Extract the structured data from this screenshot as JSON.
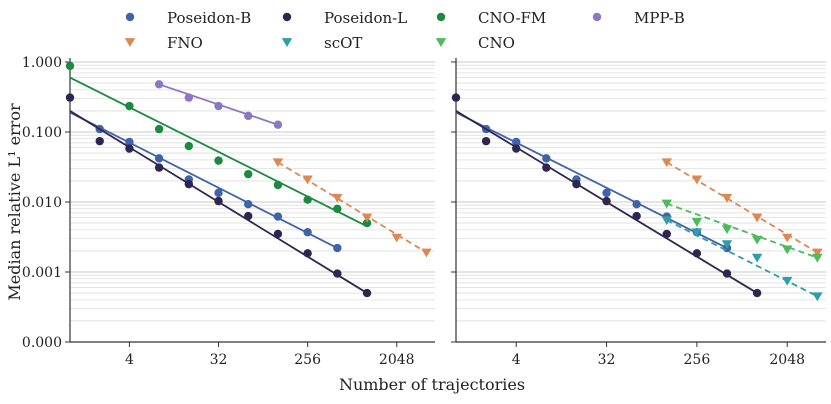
{
  "chart_data": {
    "type": "scatter",
    "xlabel": "Number of trajectories",
    "ylabel": "Median relative L¹ error",
    "xscale": "log2",
    "yscale": "log10",
    "xlim": [
      1,
      5000
    ],
    "ylim": [
      0.0001,
      1.0
    ],
    "xticks": [
      4,
      32,
      256,
      2048
    ],
    "xtick_labels": [
      "4",
      "32",
      "256",
      "2048"
    ],
    "yticks": [
      1.0,
      0.1,
      0.01,
      0.001,
      0.0001
    ],
    "ytick_labels": [
      "1.000",
      "0.100",
      "0.010",
      "0.001",
      "0.000"
    ],
    "grid": "horizontal",
    "legend": {
      "placement": "top",
      "entries": [
        {
          "label": "Poseidon-B",
          "marker": "circle",
          "color": "#4062a8"
        },
        {
          "label": "Poseidon-L",
          "marker": "circle",
          "color": "#2e2650"
        },
        {
          "label": "CNO-FM",
          "marker": "circle",
          "color": "#1b8a3e"
        },
        {
          "label": "MPP-B",
          "marker": "circle",
          "color": "#8a79c0"
        },
        {
          "label": "FNO",
          "marker": "triangle",
          "color": "#dd8852"
        },
        {
          "label": "scOT",
          "marker": "triangle",
          "color": "#2e9eaa"
        },
        {
          "label": "CNO",
          "marker": "triangle",
          "color": "#4cbb5c"
        }
      ]
    },
    "panels": [
      {
        "series": [
          {
            "name": "Poseidon-B",
            "x": [
              2,
              4,
              8,
              16,
              32,
              64,
              128,
              256,
              512
            ],
            "y": [
              0.11,
              0.072,
              0.042,
              0.021,
              0.0135,
              0.0093,
              0.0062,
              0.0037,
              0.0022
            ],
            "fit": [
              [
                1,
                0.19
              ],
              [
                512,
                0.0022
              ]
            ],
            "style": "solid"
          },
          {
            "name": "Poseidon-L",
            "x": [
              1,
              2,
              4,
              8,
              16,
              32,
              64,
              128,
              256,
              512,
              1024
            ],
            "y": [
              0.31,
              0.074,
              0.058,
              0.031,
              0.018,
              0.0103,
              0.0063,
              0.0035,
              0.00185,
              0.00095,
              0.0005
            ],
            "fit": [
              [
                1,
                0.2
              ],
              [
                1024,
                0.0005
              ]
            ],
            "style": "solid"
          },
          {
            "name": "CNO-FM",
            "x": [
              1,
              4,
              8,
              16,
              32,
              64,
              128,
              256,
              512,
              1024
            ],
            "y": [
              0.88,
              0.235,
              0.11,
              0.063,
              0.039,
              0.025,
              0.0175,
              0.0108,
              0.008,
              0.005
            ],
            "fit": [
              [
                1,
                0.6
              ],
              [
                1024,
                0.0045
              ]
            ],
            "style": "solid"
          },
          {
            "name": "MPP-B",
            "x": [
              8,
              16,
              32,
              64,
              128
            ],
            "y": [
              0.48,
              0.31,
              0.235,
              0.17,
              0.127
            ],
            "fit": [
              [
                8,
                0.48
              ],
              [
                128,
                0.127
              ]
            ],
            "style": "solid"
          },
          {
            "name": "FNO",
            "x": [
              128,
              256,
              512,
              1024,
              2048,
              4096
            ],
            "y": [
              0.037,
              0.021,
              0.0115,
              0.006,
              0.0031,
              0.0019
            ],
            "fit": [
              [
                128,
                0.037
              ],
              [
                4096,
                0.0019
              ]
            ],
            "style": "dashed"
          }
        ]
      },
      {
        "series": [
          {
            "name": "Poseidon-B",
            "x": [
              2,
              4,
              8,
              16,
              32,
              64,
              128,
              256,
              512
            ],
            "y": [
              0.11,
              0.072,
              0.042,
              0.021,
              0.0135,
              0.0093,
              0.0062,
              0.0037,
              0.0022
            ],
            "fit": [
              [
                1,
                0.19
              ],
              [
                512,
                0.0022
              ]
            ],
            "style": "solid"
          },
          {
            "name": "Poseidon-L",
            "x": [
              1,
              2,
              4,
              8,
              16,
              32,
              64,
              128,
              256,
              512,
              1024
            ],
            "y": [
              0.31,
              0.074,
              0.058,
              0.031,
              0.018,
              0.0103,
              0.0063,
              0.0035,
              0.00185,
              0.00095,
              0.0005
            ],
            "fit": [
              [
                1,
                0.2
              ],
              [
                1024,
                0.0005
              ]
            ],
            "style": "solid"
          },
          {
            "name": "FNO",
            "x": [
              128,
              256,
              512,
              1024,
              2048,
              4096
            ],
            "y": [
              0.037,
              0.021,
              0.0115,
              0.006,
              0.0031,
              0.0019
            ],
            "fit": [
              [
                128,
                0.037
              ],
              [
                4096,
                0.0019
              ]
            ],
            "style": "dashed"
          },
          {
            "name": "scOT",
            "x": [
              128,
              256,
              512,
              1024,
              2048,
              4096
            ],
            "y": [
              0.0055,
              0.0037,
              0.0025,
              0.0016,
              0.00075,
              0.00045
            ],
            "fit": [
              [
                128,
                0.0055
              ],
              [
                4096,
                0.00045
              ]
            ],
            "style": "dashed"
          },
          {
            "name": "CNO",
            "x": [
              128,
              256,
              512,
              1024,
              2048,
              4096
            ],
            "y": [
              0.0095,
              0.0052,
              0.0041,
              0.0029,
              0.0021,
              0.0016
            ],
            "fit": [
              [
                128,
                0.0095
              ],
              [
                4096,
                0.0016
              ]
            ],
            "style": "dashed"
          }
        ]
      }
    ]
  }
}
